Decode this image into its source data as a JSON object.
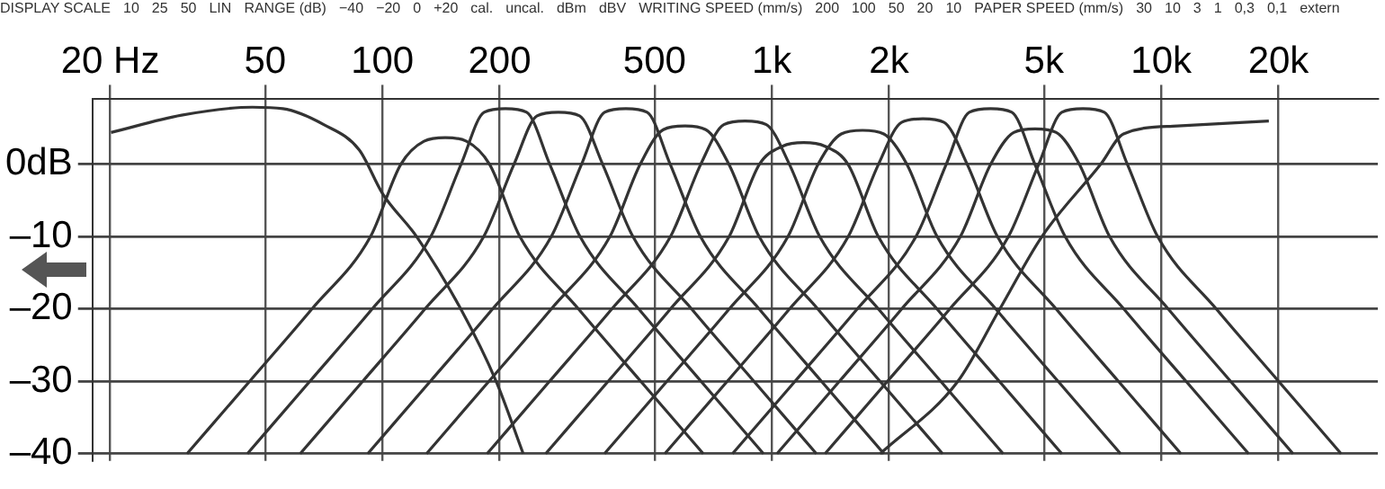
{
  "chart_data": {
    "type": "line",
    "annotations": [
      "DISPLAY SCALE",
      "10",
      "25",
      "50",
      "LIN",
      "RANGE (dB)",
      "−40",
      "−20",
      "0",
      "+20",
      "cal.",
      "uncal.",
      "dBm",
      "dBV",
      "WRITING SPEED (mm/s)",
      "200",
      "100",
      "50",
      "20",
      "10",
      "PAPER SPEED (mm/s)",
      "30",
      "10",
      "3",
      "1",
      "0,3",
      "0,1",
      "extern"
    ],
    "log": "x",
    "xlim": [
      18,
      36000
    ],
    "ylim": [
      -41,
      9
    ],
    "xticks": [
      {
        "value": 20,
        "label": "20 Hz"
      },
      50,
      100,
      200,
      500,
      {
        "value": 1000,
        "label": "1k"
      },
      {
        "value": 2000,
        "label": "2k"
      },
      {
        "value": 5000,
        "label": "5k"
      },
      {
        "value": 10000,
        "label": "10k"
      },
      {
        "value": 20000,
        "label": "20k"
      }
    ],
    "yticks": [
      {
        "value": 0,
        "label": "0dB"
      },
      {
        "value": -10,
        "label": "–10"
      },
      {
        "value": -20,
        "label": "–20"
      },
      {
        "value": -30,
        "label": "–30"
      },
      {
        "value": -40,
        "label": "–40"
      }
    ],
    "grid": true,
    "legend": false,
    "marker": "none",
    "line_style": "solid",
    "series": [
      {
        "color": "#333333",
        "x": [
          20.1,
          30.5,
          46.4,
          55.5,
          70.7,
          87.2,
          100,
          122.5,
          159,
          196,
          230
        ],
        "values": [
          4.4,
          6.8,
          7.9,
          7.7,
          5.5,
          2,
          -4,
          -10,
          -20,
          -30,
          -40
        ]
      },
      {
        "color": "#333333",
        "x": [
          31.5,
          45.6,
          65.9,
          93.2,
          111.5,
          127.9,
          145,
          164.4,
          188.5,
          225.5,
          319,
          461,
          667
        ],
        "values": [
          -40,
          -30,
          -20,
          -10,
          0,
          3.2,
          3.7,
          3.2,
          0,
          -10,
          -20,
          -30,
          -40
        ]
      },
      {
        "color": "#333333",
        "x": [
          45,
          65.1,
          94.1,
          133.1,
          159.2,
          182.5,
          207,
          234.7,
          269.1,
          321.9,
          455.4,
          658.3,
          952.2
        ],
        "values": [
          -40,
          -30,
          -20,
          -10,
          0,
          7.2,
          7.7,
          7.2,
          0,
          -10,
          -20,
          -30,
          -40
        ]
      },
      {
        "color": "#333333",
        "x": [
          61.5,
          89,
          128.6,
          182,
          217.7,
          249.6,
          283,
          320.9,
          367.9,
          440.1,
          622.6,
          900,
          1302
        ],
        "values": [
          -40,
          -30,
          -20,
          -10,
          0,
          6.7,
          7.2,
          6.7,
          0,
          -10,
          -20,
          -30,
          -40
        ]
      },
      {
        "color": "#333333",
        "x": [
          91.7,
          132.7,
          191.8,
          271.4,
          324.6,
          372.1,
          422,
          478.5,
          548.6,
          656.2,
          928.4,
          1342,
          1941
        ],
        "values": [
          -40,
          -30,
          -20,
          -10,
          0,
          7.2,
          7.7,
          7.2,
          0,
          -10,
          -20,
          -30,
          -40
        ]
      },
      {
        "color": "#333333",
        "x": [
          129.8,
          187.7,
          271.4,
          383.9,
          459.2,
          526.5,
          597,
          677,
          776.1,
          928.3,
          1313,
          1898,
          2746
        ],
        "values": [
          -40,
          -30,
          -20,
          -10,
          0,
          4.8,
          5.3,
          4.8,
          0,
          -10,
          -20,
          -30,
          -40
        ]
      },
      {
        "color": "#333333",
        "x": [
          185.7,
          268.6,
          388.2,
          549.2,
          656.9,
          753.1,
          854,
          968.4,
          1110,
          1328,
          1879,
          2716,
          3928
        ],
        "values": [
          -40,
          -30,
          -20,
          -10,
          0,
          5.5,
          6,
          5.5,
          0,
          -10,
          -20,
          -30,
          -40
        ]
      },
      {
        "color": "#333333",
        "x": [
          262.6,
          379.9,
          549.1,
          776.8,
          929.2,
          1065,
          1208,
          1370,
          1570,
          1878,
          2658,
          3841,
          5557
        ],
        "values": [
          -40,
          -30,
          -20,
          -10,
          0,
          2.5,
          3,
          2.5,
          0,
          -10,
          -20,
          -30,
          -40
        ]
      },
      {
        "color": "#333333",
        "x": [
          371.7,
          537.7,
          777.3,
          1100,
          1315,
          1508,
          1710,
          1939,
          2223,
          2659,
          3762,
          5438,
          7866
        ],
        "values": [
          -40,
          -30,
          -20,
          -10,
          0,
          4.2,
          4.7,
          4.2,
          0,
          -10,
          -20,
          -30,
          -40
        ]
      },
      {
        "color": "#333333",
        "x": [
          531.1,
          768.2,
          1110,
          1571,
          1879,
          2154,
          2443,
          2770,
          3176,
          3799,
          5375,
          7769,
          11240
        ],
        "values": [
          -40,
          -30,
          -20,
          -10,
          0,
          5.8,
          6.3,
          5.8,
          0,
          -10,
          -20,
          -30,
          -40
        ]
      },
      {
        "color": "#333333",
        "x": [
          792.6,
          1147,
          1657,
          2345,
          2805,
          3215,
          3646,
          4135,
          4740,
          5670,
          8021,
          11590,
          16770
        ],
        "values": [
          -40,
          -30,
          -20,
          -10,
          0,
          7.2,
          7.7,
          7.2,
          0,
          -10,
          -20,
          -30,
          -40
        ]
      },
      {
        "color": "#333333",
        "x": [
          1031,
          1491,
          2155,
          3049,
          3648,
          4182,
          4742,
          5377,
          6165,
          7374,
          10430,
          15080,
          21810
        ],
        "values": [
          -40,
          -30,
          -20,
          -10,
          0,
          4.4,
          4.9,
          4.4,
          0,
          -10,
          -20,
          -30,
          -40
        ]
      },
      {
        "color": "#333333",
        "x": [
          1370,
          1981,
          2864,
          4051,
          4846,
          5556,
          6300,
          7144,
          8190,
          9797,
          13860,
          20030,
          28980
        ],
        "values": [
          -40,
          -30,
          -20,
          -10,
          0,
          7.2,
          7.7,
          7.2,
          0,
          -10,
          -20,
          -30,
          -40
        ]
      },
      {
        "color": "#333333",
        "x": [
          1899,
          3005,
          3851,
          4937,
          6990,
          8003,
          11010,
          18900
        ],
        "values": [
          -40,
          -30,
          -20,
          -10,
          0,
          4.2,
          5.3,
          6
        ]
      }
    ]
  }
}
